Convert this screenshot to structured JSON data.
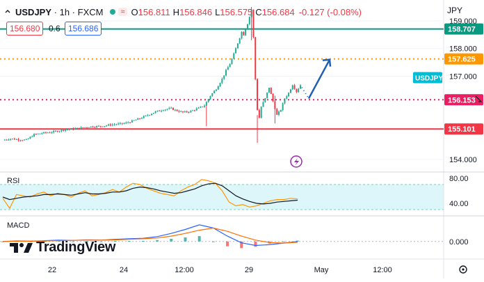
{
  "header": {
    "symbol": "USDJPY",
    "interval": "1h",
    "source": "FXCM",
    "open": "156.811",
    "high": "156.846",
    "low": "156.575",
    "close": "156.684",
    "change": "-0.127 (-0.08%)",
    "sell_price": "156.680",
    "spread": "0.6",
    "buy_price": "156.686",
    "currency": "JPY"
  },
  "colors": {
    "up": "#22ab94",
    "down": "#f23645",
    "teal_line": "#089981",
    "orange": "#ff9800",
    "magenta": "#e91e63",
    "red_line": "#f23645",
    "arrow": "#1e5fb4",
    "symbol_tag": "#00bcd4"
  },
  "chart_data": [
    {
      "type": "candlestick",
      "title": "USDJPY · 1h · FXCM",
      "y_ticks": [
        "159.000",
        "158.000",
        "157.000",
        "154.000"
      ],
      "x_ticks": [
        "22",
        "24",
        "12:00",
        "29",
        "May",
        "12:00"
      ],
      "ylim": [
        153.6,
        159.6
      ],
      "symbol_tag": "USDJPY",
      "levels": [
        {
          "price": 158.707,
          "label": "158.707",
          "style": "solid",
          "color": "#089981"
        },
        {
          "price": 157.625,
          "label": "157.625",
          "style": "dotted",
          "color": "#ff9800"
        },
        {
          "price": 156.153,
          "label": "156.153",
          "style": "dotted",
          "color": "#e91e63"
        },
        {
          "price": 155.101,
          "label": "155.101",
          "style": "solid",
          "color": "#f23645"
        }
      ],
      "path": [
        [
          0,
          154.7
        ],
        [
          4,
          154.75
        ],
        [
          8,
          154.72
        ],
        [
          12,
          154.7
        ],
        [
          16,
          154.9
        ],
        [
          20,
          154.95
        ],
        [
          26,
          155.0
        ],
        [
          32,
          155.08
        ],
        [
          38,
          155.12
        ],
        [
          44,
          155.18
        ],
        [
          50,
          155.2
        ],
        [
          56,
          155.26
        ],
        [
          62,
          155.3
        ],
        [
          66,
          155.38
        ],
        [
          70,
          155.48
        ],
        [
          74,
          155.6
        ],
        [
          78,
          155.72
        ],
        [
          82,
          155.8
        ],
        [
          86,
          155.84
        ],
        [
          88,
          155.78
        ],
        [
          92,
          155.7
        ],
        [
          96,
          155.74
        ],
        [
          100,
          155.85
        ],
        [
          103,
          155.95
        ],
        [
          106,
          156.3
        ],
        [
          109,
          156.55
        ],
        [
          112,
          156.9
        ],
        [
          114,
          157.2
        ],
        [
          116,
          157.45
        ],
        [
          118,
          157.8
        ],
        [
          120,
          158.2
        ],
        [
          122,
          158.6
        ],
        [
          123,
          158.5
        ],
        [
          125,
          158.9
        ],
        [
          127,
          159.4
        ],
        [
          128,
          158.4
        ],
        [
          129,
          156.9
        ],
        [
          130,
          155.8
        ],
        [
          131,
          155.5
        ],
        [
          132,
          155.9
        ],
        [
          134,
          156.2
        ],
        [
          136,
          156.6
        ],
        [
          138,
          156.1
        ],
        [
          140,
          155.6
        ],
        [
          142,
          155.8
        ],
        [
          144,
          156.2
        ],
        [
          146,
          156.4
        ],
        [
          148,
          156.7
        ],
        [
          150,
          156.45
        ],
        [
          152,
          156.68
        ]
      ],
      "bars": 152,
      "forecast_arrow": {
        "from": [
          156.2
        ],
        "to": [
          157.6
        ]
      }
    },
    {
      "type": "line",
      "title": "RSI",
      "y_ticks": [
        "80.00",
        "40.00"
      ],
      "ylim": [
        20,
        90
      ],
      "band": [
        30,
        70
      ],
      "series": [
        {
          "color": "#ff9800",
          "values": [
            48,
            32,
            54,
            52,
            50,
            55,
            58,
            52,
            56,
            54,
            50,
            56,
            60,
            52,
            54,
            57,
            62,
            58,
            66,
            72,
            70,
            64,
            60,
            56,
            54,
            52,
            60,
            66,
            70,
            78,
            76,
            72,
            60,
            42,
            36,
            38,
            34,
            36,
            40,
            44,
            46,
            46,
            48,
            47
          ]
        },
        {
          "color": "#131722",
          "values": [
            50,
            46,
            48,
            50,
            51,
            52,
            54,
            54,
            55,
            54,
            53,
            55,
            57,
            55,
            55,
            56,
            58,
            58,
            60,
            64,
            66,
            65,
            63,
            60,
            58,
            56,
            57,
            60,
            63,
            68,
            71,
            72,
            68,
            60,
            52,
            47,
            43,
            40,
            39,
            40,
            42,
            43,
            44,
            45
          ]
        }
      ]
    },
    {
      "type": "line",
      "title": "MACD",
      "y_ticks": [
        "0.000"
      ],
      "ylim": [
        -0.5,
        0.8
      ],
      "series": [
        {
          "color": "#2962ff",
          "values": [
            0,
            0.02,
            0.01,
            0.03,
            0.05,
            0.04,
            0.06,
            0.05,
            0.08,
            0.1,
            0.12,
            0.18,
            0.3,
            0.45,
            0.62,
            0.5,
            0.2,
            -0.05,
            -0.15,
            -0.12,
            -0.06,
            0
          ]
        },
        {
          "color": "#ff6d00",
          "values": [
            0,
            0.01,
            0.01,
            0.02,
            0.03,
            0.04,
            0.05,
            0.05,
            0.06,
            0.08,
            0.1,
            0.13,
            0.2,
            0.3,
            0.42,
            0.5,
            0.38,
            0.2,
            0.05,
            -0.04,
            -0.06,
            -0.03
          ]
        }
      ]
    }
  ],
  "watermark": "TradingView"
}
